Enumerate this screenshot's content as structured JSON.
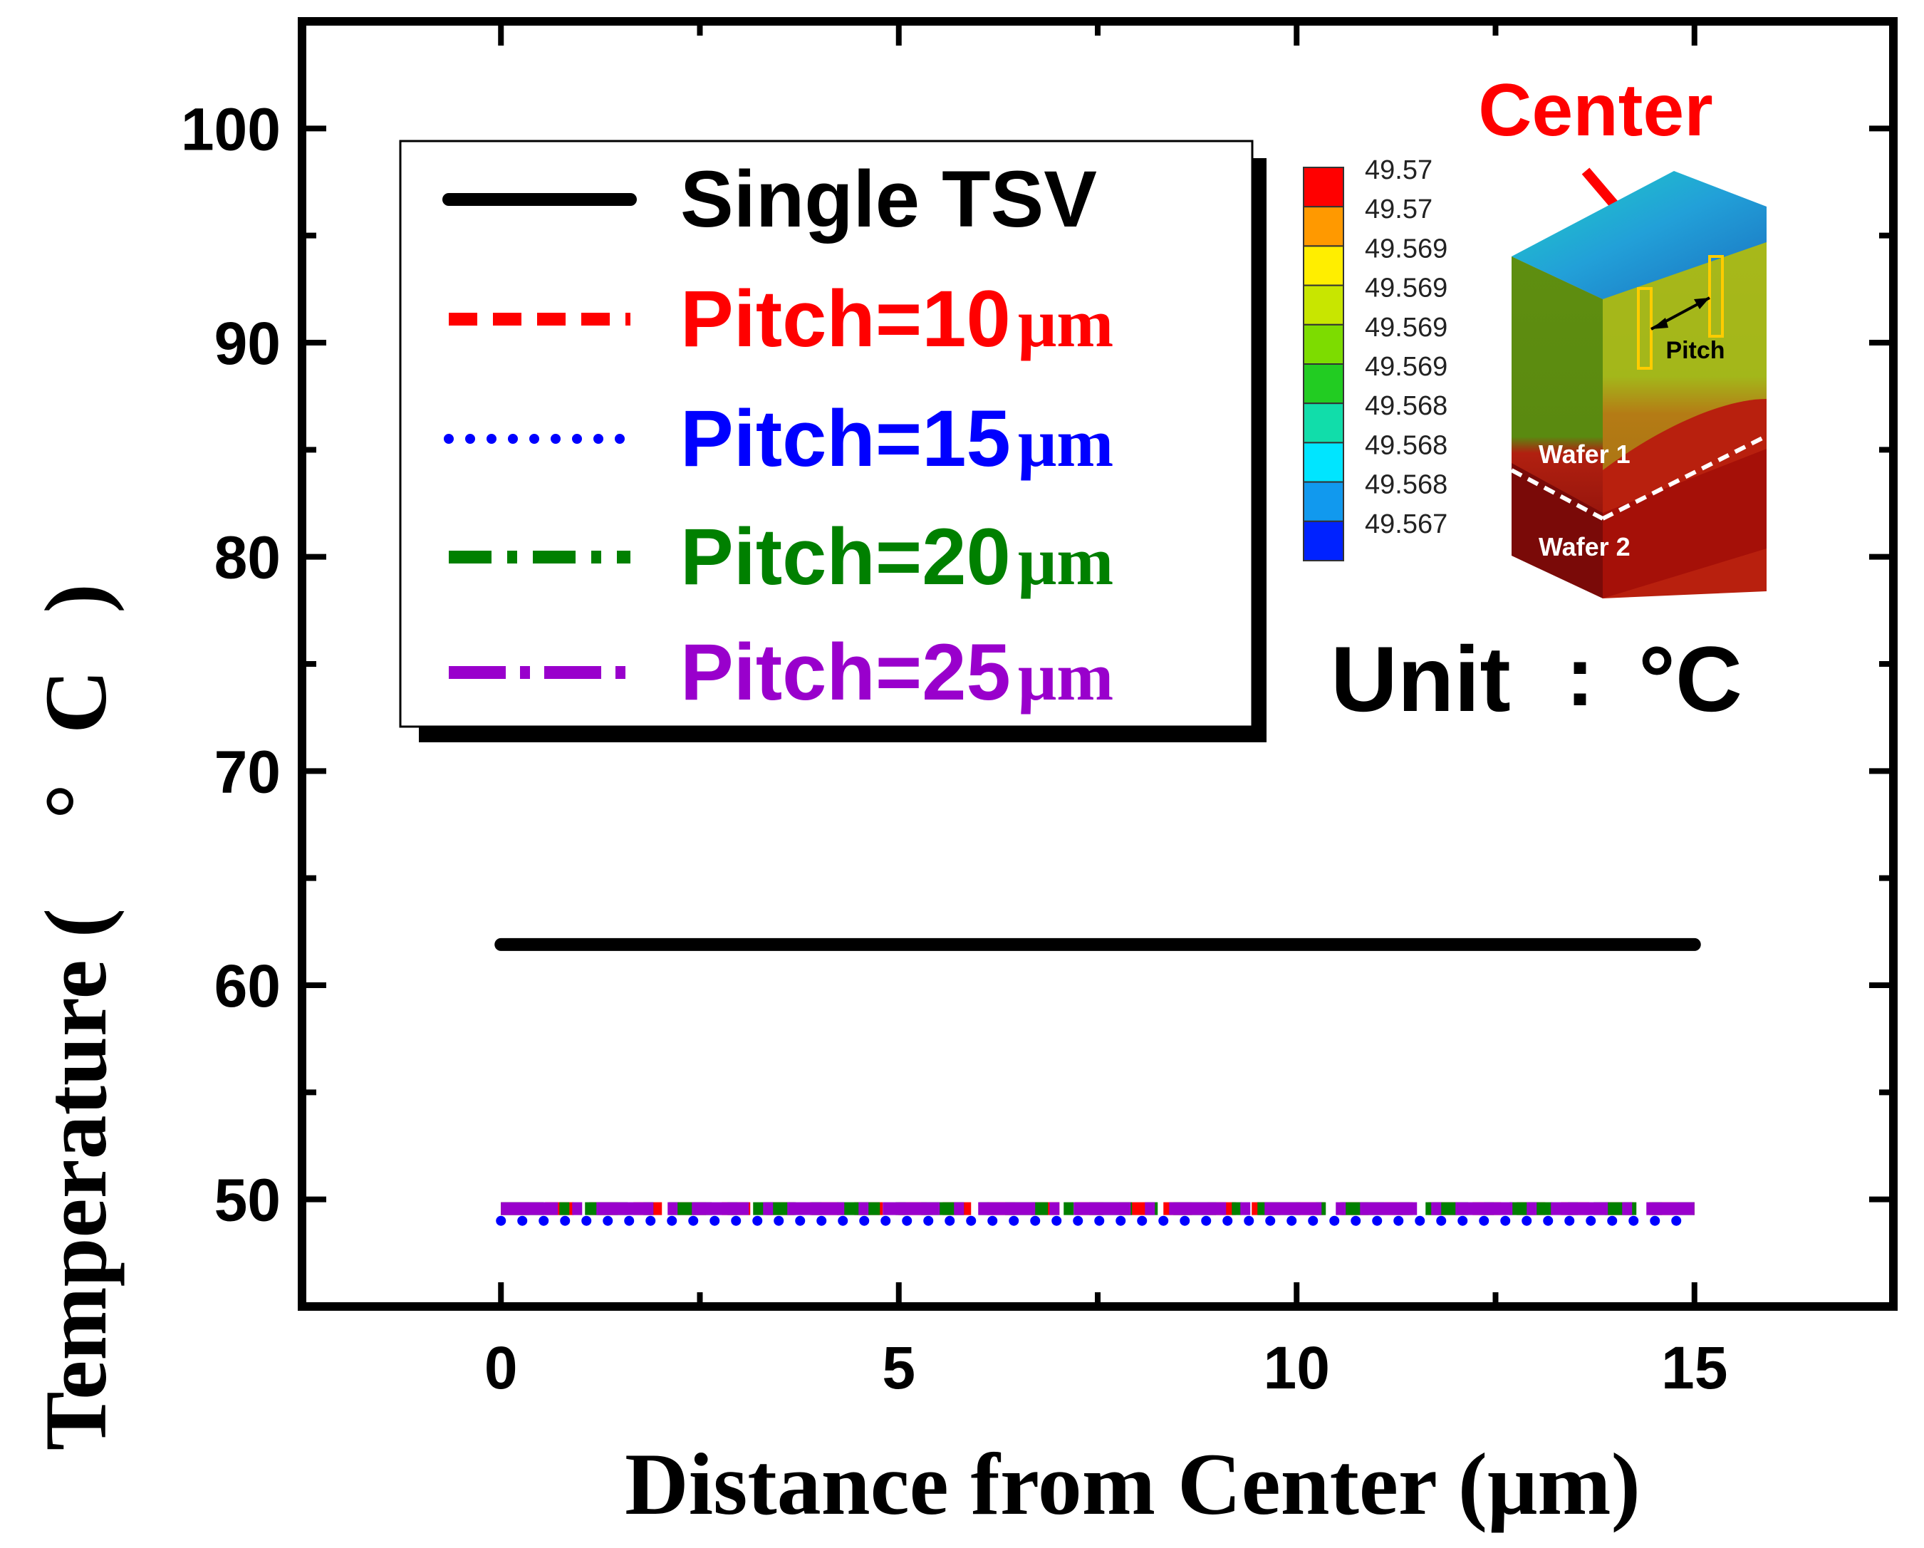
{
  "chart_data": {
    "type": "line",
    "title": "",
    "xlabel": "Distance from Center (μm)",
    "ylabel": "Temperature (°C)",
    "ylabel_open": "Temperature (",
    "ylabel_deg": "°",
    "ylabel_c": "C",
    "ylabel_close": ")",
    "xlim": [
      -2.5,
      17.5
    ],
    "ylim": [
      45,
      105
    ],
    "xticks": [
      0,
      5,
      10,
      15
    ],
    "yticks": [
      50,
      60,
      70,
      80,
      90,
      100
    ],
    "x": [
      0,
      15
    ],
    "series": [
      {
        "name": "Single TSV",
        "label": "Single TSV",
        "unit": "",
        "color": "#000000",
        "style": "solid",
        "values": [
          61.9,
          61.9
        ]
      },
      {
        "name": "Pitch=10μm",
        "label": "Pitch=10",
        "unit": "μm",
        "color": "#ff0000",
        "style": "dash",
        "values": [
          49.57,
          49.57
        ]
      },
      {
        "name": "Pitch=15μm",
        "label": "Pitch=15",
        "unit": "μm",
        "color": "#0000ff",
        "style": "dot",
        "values": [
          49.0,
          49.0
        ]
      },
      {
        "name": "Pitch=20μm",
        "label": "Pitch=20",
        "unit": "μm",
        "color": "#008000",
        "style": "dashdot",
        "values": [
          49.57,
          49.57
        ]
      },
      {
        "name": "Pitch=25μm",
        "label": "Pitch=25",
        "unit": "μm",
        "color": "#9900cc",
        "style": "dashdotlong",
        "values": [
          49.57,
          49.57
        ]
      }
    ],
    "legend_position": "top-left"
  },
  "inset": {
    "callout": "Center",
    "unit_label": "Unit",
    "unit_separator": ":",
    "unit_value": "°C",
    "pitch_label": "Pitch",
    "wafer_1": "Wafer 1",
    "wafer_2": "Wafer 2",
    "colorbar_labels": [
      "49.57",
      "49.57",
      "49.569",
      "49.569",
      "49.569",
      "49.569",
      "49.568",
      "49.568",
      "49.568",
      "49.567"
    ],
    "colorbar_colors": [
      "#ff0000",
      "#ff9900",
      "#ffee00",
      "#c8e600",
      "#7ddc00",
      "#22cc22",
      "#11ddaa",
      "#00e5ff",
      "#1199ee",
      "#0022ff"
    ]
  }
}
